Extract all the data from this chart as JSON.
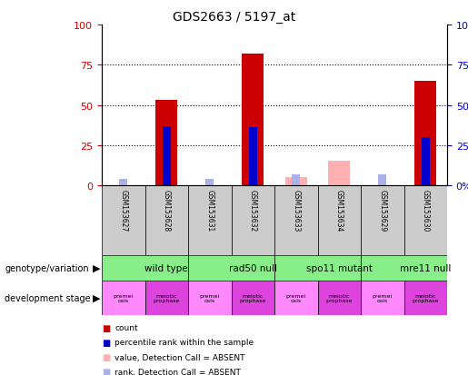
{
  "title": "GDS2663 / 5197_at",
  "samples": [
    "GSM153627",
    "GSM153628",
    "GSM153631",
    "GSM153632",
    "GSM153633",
    "GSM153634",
    "GSM153629",
    "GSM153630"
  ],
  "count_values": [
    0,
    53,
    0,
    82,
    0,
    0,
    0,
    65
  ],
  "rank_values": [
    0,
    37,
    0,
    36,
    0,
    0,
    0,
    30
  ],
  "absent_value_values": [
    0,
    0,
    0,
    0,
    5,
    15,
    0,
    0
  ],
  "absent_rank_values": [
    4,
    0,
    4,
    0,
    7,
    0,
    7,
    0
  ],
  "ylim": [
    0,
    100
  ],
  "yticks": [
    0,
    25,
    50,
    75,
    100
  ],
  "left_yaxis_color": "#cc0000",
  "right_yaxis_color": "#0000cc",
  "count_color": "#cc0000",
  "rank_color": "#0000cc",
  "absent_value_color": "#ffb0b0",
  "absent_rank_color": "#aab0e8",
  "genotype_groups": [
    {
      "label": "wild type",
      "start": 0,
      "end": 2
    },
    {
      "label": "rad50 null",
      "start": 2,
      "end": 4
    },
    {
      "label": "spo11 mutant",
      "start": 4,
      "end": 6
    },
    {
      "label": "mre11 null",
      "start": 6,
      "end": 8
    }
  ],
  "dev_stages": [
    {
      "label": "premei\nosis",
      "color": "#ff88ff"
    },
    {
      "label": "meiotic\nprophase",
      "color": "#dd44dd"
    },
    {
      "label": "premei\nosis",
      "color": "#ff88ff"
    },
    {
      "label": "meiotic\nprophase",
      "color": "#dd44dd"
    },
    {
      "label": "premei\nosis",
      "color": "#ff88ff"
    },
    {
      "label": "meiotic\nprophase",
      "color": "#dd44dd"
    },
    {
      "label": "premei\nosis",
      "color": "#ff88ff"
    },
    {
      "label": "meiotic\nprophase",
      "color": "#dd44dd"
    }
  ],
  "genotype_bg_color": "#88ee88",
  "sample_bg_color": "#cccccc",
  "legend_items": [
    {
      "label": "count",
      "color": "#cc0000"
    },
    {
      "label": "percentile rank within the sample",
      "color": "#0000cc"
    },
    {
      "label": "value, Detection Call = ABSENT",
      "color": "#ffb0b0"
    },
    {
      "label": "rank, Detection Call = ABSENT",
      "color": "#aab0e8"
    }
  ],
  "fig_width": 5.15,
  "fig_height": 4.14,
  "dpi": 100
}
